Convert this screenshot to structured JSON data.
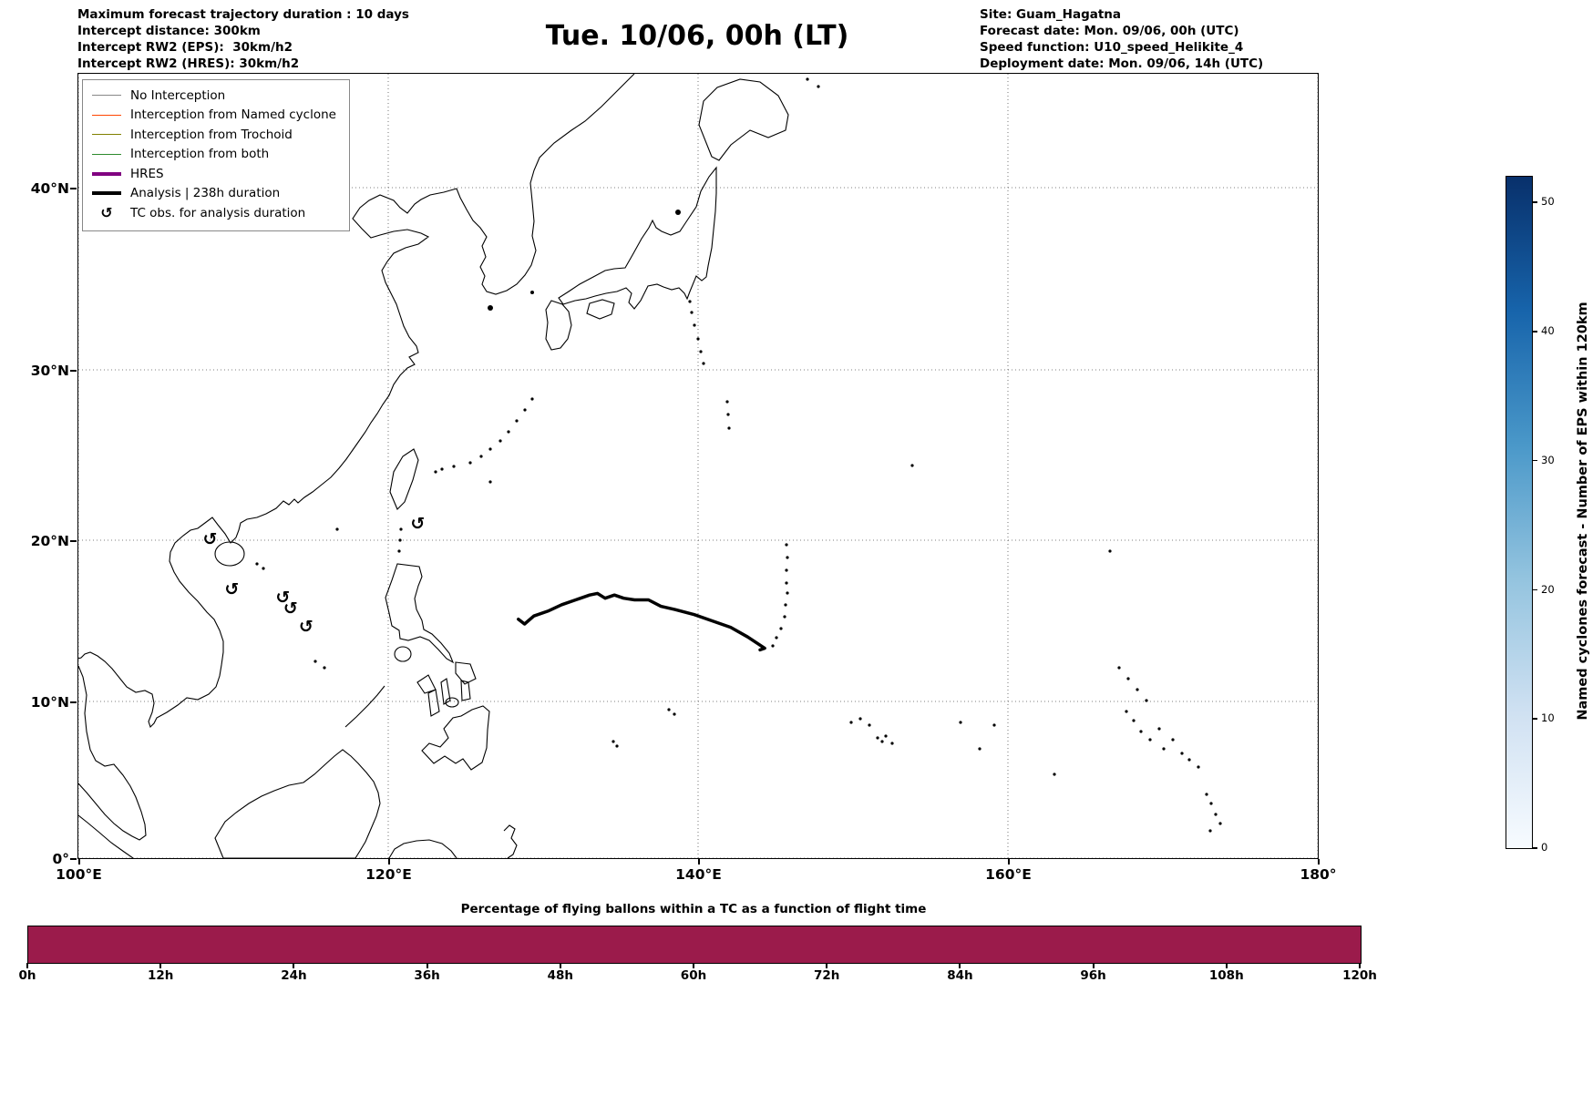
{
  "header": {
    "top_left_lines": [
      "Maximum forecast trajectory duration : 10 days",
      "Intercept distance: 300km",
      "Intercept RW2 (EPS):  30km/h2",
      "Intercept RW2 (HRES): 30km/h2"
    ],
    "title": "Tue. 10/06, 00h (LT)",
    "top_right_lines": [
      "Site: Guam_Hagatna",
      "Forecast date: Mon. 09/06, 00h (UTC)",
      "Speed function: U10_speed_Helikite_4",
      "Deployment date: Mon. 09/06, 14h (UTC)"
    ]
  },
  "map": {
    "legend": {
      "items": [
        {
          "label": "No Interception",
          "type": "line",
          "color": "#888888",
          "weight": 1.2
        },
        {
          "label": "Interception from Named cyclone",
          "type": "line",
          "color": "#ff4500",
          "weight": 1.6
        },
        {
          "label": "Interception from Trochoid",
          "type": "line",
          "color": "#808000",
          "weight": 1.6
        },
        {
          "label": "Interception from both",
          "type": "line",
          "color": "#2e8b2e",
          "weight": 1.6
        },
        {
          "label": "HRES",
          "type": "line",
          "color": "#800080",
          "weight": 4
        },
        {
          "label": "Analysis | 238h duration",
          "type": "line",
          "color": "#000000",
          "weight": 4
        },
        {
          "label": "TC obs. for analysis duration",
          "type": "symbol",
          "symbol": "↺",
          "color": "#000000"
        }
      ]
    },
    "x_ticks": [
      {
        "label": "100°E",
        "lon": 100
      },
      {
        "label": "120°E",
        "lon": 120
      },
      {
        "label": "140°E",
        "lon": 140
      },
      {
        "label": "160°E",
        "lon": 160
      },
      {
        "label": "180°",
        "lon": 180
      }
    ],
    "y_ticks": [
      {
        "label": "40°N",
        "lat": 40
      },
      {
        "label": "30°N",
        "lat": 30
      },
      {
        "label": "20°N",
        "lat": 20
      },
      {
        "label": "10°N",
        "lat": 10
      },
      {
        "label": "0°",
        "lat": 0
      }
    ],
    "tc_symbol": "↺",
    "tc_observations": [
      [
        108.5,
        20.0
      ],
      [
        109.9,
        16.9
      ],
      [
        113.2,
        16.4
      ],
      [
        113.7,
        15.7
      ],
      [
        114.7,
        14.6
      ],
      [
        121.9,
        20.9
      ]
    ]
  },
  "colorbar": {
    "label": "Named cyclones forecast - Number of EPS within 120km",
    "vmin": 0,
    "vmax": 52,
    "ticks": [
      0,
      10,
      20,
      30,
      40,
      50
    ],
    "gradient": [
      "#f7fbff",
      "#d0e1f2",
      "#94c4df",
      "#4a98c9",
      "#1764ab",
      "#08306b"
    ]
  },
  "bottom_chart": {
    "title": "Percentage of flying ballons within a TC as a function of flight time",
    "ticks": [
      "0h",
      "12h",
      "24h",
      "36h",
      "48h",
      "60h",
      "72h",
      "84h",
      "96h",
      "108h",
      "120h"
    ],
    "bar_color": "#9b1b4b"
  },
  "chart_data": [
    {
      "type": "line",
      "name": "analysis-track-map",
      "title": "Tue. 10/06, 00h (LT)",
      "xlabel": "Longitude",
      "ylabel": "Latitude",
      "xlim": [
        100,
        180
      ],
      "ylim": [
        0,
        46
      ],
      "grid": true,
      "legend_position": "upper left",
      "series": [
        {
          "name": "Analysis | 238h duration",
          "x": [
            128.4,
            128.8,
            129.4,
            130.3,
            131.2,
            132.1,
            133.0,
            133.5,
            134.0,
            134.6,
            135.2,
            135.9,
            136.8,
            137.6,
            138.5,
            139.7,
            140.9,
            142.1,
            143.2,
            144.3,
            144.0
          ],
          "y": [
            15.1,
            14.8,
            15.3,
            15.6,
            16.0,
            16.3,
            16.6,
            16.7,
            16.4,
            16.6,
            16.4,
            16.3,
            16.3,
            15.9,
            15.7,
            15.4,
            15.0,
            14.6,
            14.0,
            13.3,
            13.2
          ]
        }
      ]
    },
    {
      "type": "bar",
      "name": "balloon-tc-percentage",
      "title": "Percentage of flying ballons within a TC as a function of flight time",
      "categories": [
        "0h",
        "12h",
        "24h",
        "36h",
        "48h",
        "60h",
        "72h",
        "84h",
        "96h",
        "108h",
        "120h"
      ],
      "values": [
        100,
        100,
        100,
        100,
        100,
        100,
        100,
        100,
        100,
        100,
        100
      ],
      "xlim": [
        0,
        120
      ],
      "note": "single solid bar spanning the full 0h-120h range"
    }
  ]
}
